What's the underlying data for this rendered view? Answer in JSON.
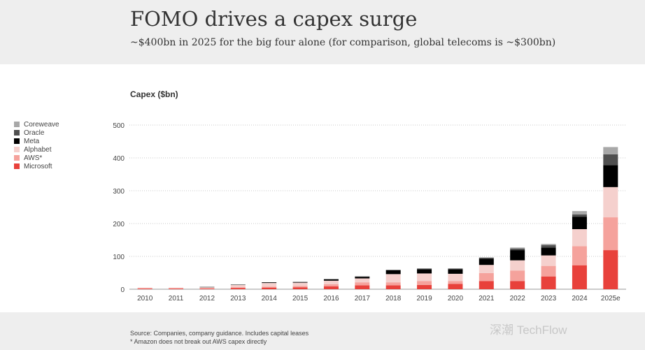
{
  "header": {
    "title": "FOMO drives a capex surge",
    "subtitle": "~$400bn in 2025 for the big four alone (for comparison, global telecoms is ~$300bn)"
  },
  "footer": {
    "source": "Source: Companies, company guidance. Includes capital leases",
    "note": "* Amazon does not break out AWS capex directly"
  },
  "watermark": "深潮 TechFlow",
  "colors": {
    "Coreweave": "#a8a8a8",
    "Oracle": "#505050",
    "Meta": "#000000",
    "Alphabet": "#f5d0cd",
    "AWS*": "#f5a29c",
    "Microsoft": "#e8413b"
  },
  "chart_data": {
    "type": "bar",
    "stacked": true,
    "ylabel": "Capex ($bn)",
    "ylim": [
      0,
      500
    ],
    "yticks": [
      0,
      100,
      200,
      300,
      400,
      500
    ],
    "grid": true,
    "legend_position": "left",
    "categories": [
      "2010",
      "2011",
      "2012",
      "2013",
      "2014",
      "2015",
      "2016",
      "2017",
      "2018",
      "2019",
      "2020",
      "2021",
      "2022",
      "2023",
      "2024",
      "2025e"
    ],
    "series": [
      {
        "name": "Microsoft",
        "values": [
          2,
          2,
          2,
          4,
          5,
          6,
          9,
          12,
          12,
          13,
          16,
          25,
          25,
          39,
          73,
          119
        ]
      },
      {
        "name": "AWS*",
        "values": [
          1,
          1,
          1,
          2,
          3,
          4,
          6,
          9,
          9,
          12,
          9,
          24,
          32,
          32,
          58,
          100
        ]
      },
      {
        "name": "Alphabet",
        "values": [
          2,
          2,
          3,
          7,
          11,
          10,
          11,
          12,
          25,
          23,
          22,
          25,
          31,
          32,
          52,
          92
        ]
      },
      {
        "name": "Meta",
        "values": [
          0,
          0,
          1,
          1,
          2,
          2,
          4,
          5,
          12,
          13,
          14,
          19,
          31,
          24,
          38,
          67
        ]
      },
      {
        "name": "Oracle",
        "values": [
          0,
          0,
          0,
          0,
          0,
          0,
          1,
          1,
          1,
          2,
          2,
          3,
          5,
          7,
          7,
          33
        ]
      },
      {
        "name": "Coreweave",
        "values": [
          0,
          0,
          0,
          0,
          0,
          0,
          0,
          0,
          0,
          0,
          0,
          1,
          3,
          4,
          10,
          22
        ]
      }
    ]
  }
}
